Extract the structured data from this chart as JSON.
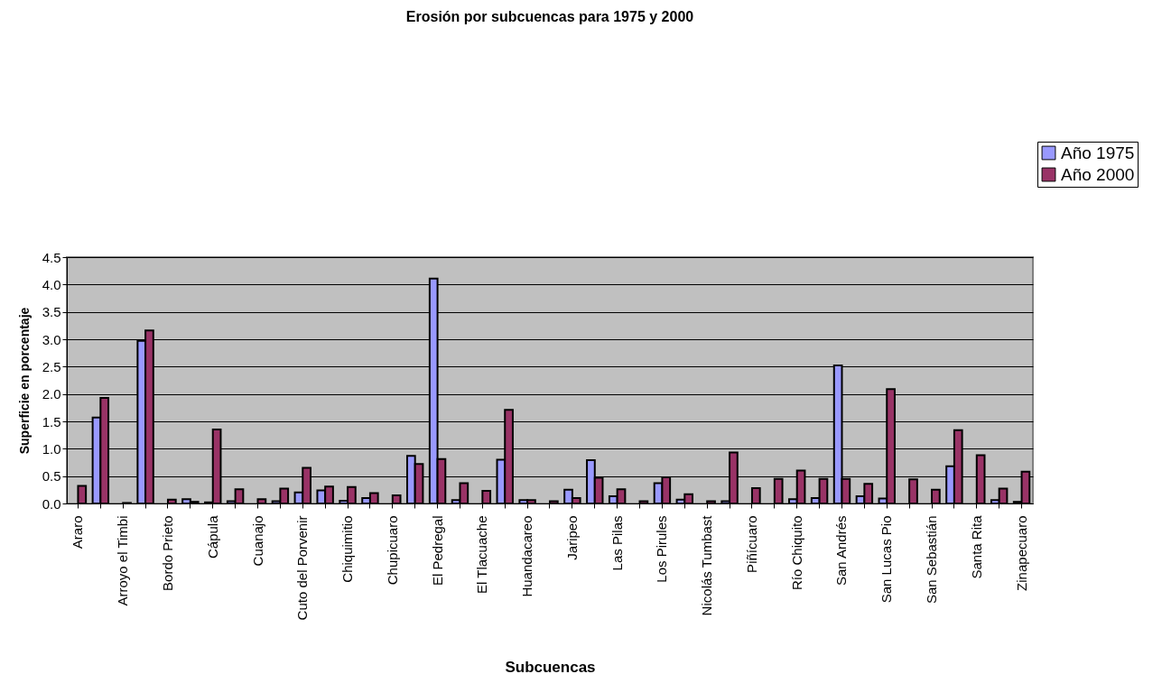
{
  "chart_data": {
    "type": "bar",
    "title": "Erosión   por subcuencas para 1975 y 2000",
    "xlabel": "Subcuencas",
    "ylabel": "Superficie en porcentaje",
    "categories": [
      "Araro",
      null,
      "Arroyo el Timbi",
      null,
      "Bordo Prieto",
      null,
      "Cápula",
      null,
      "Cuanajo",
      null,
      "Cuto del Porvenir",
      null,
      "Chiquimitio",
      null,
      "Chupicuaro",
      null,
      "El Pedregal",
      null,
      "El Tlacuache",
      null,
      "Huandacareo",
      null,
      "Jaripeo",
      null,
      "Las Pilas",
      null,
      "Los Pirules",
      null,
      "Nicolás  Tumbast",
      null,
      "Piñícuaro",
      null,
      "Río Chiquito",
      null,
      "San Andrés",
      null,
      "San Lucas Pio",
      null,
      "San Sebastián",
      null,
      "Santa Rita",
      null,
      "Zinapecuaro"
    ],
    "series": [
      {
        "name": "Año 1975",
        "color": "#9999ff",
        "values": [
          null,
          1.57,
          null,
          2.97,
          null,
          0.08,
          0.02,
          0.04,
          null,
          0.04,
          0.2,
          0.24,
          0.05,
          0.1,
          null,
          0.87,
          4.11,
          0.06,
          null,
          0.8,
          0.06,
          null,
          0.25,
          0.79,
          0.13,
          null,
          0.37,
          0.07,
          null,
          0.04,
          null,
          null,
          0.08,
          0.1,
          2.52,
          0.13,
          0.09,
          null,
          null,
          0.68,
          null,
          0.06,
          0.03
        ]
      },
      {
        "name": "Año 2000",
        "color": "#993366",
        "values": [
          0.32,
          1.93,
          0.01,
          3.16,
          0.07,
          0.03,
          1.35,
          0.26,
          0.08,
          0.27,
          0.65,
          0.31,
          0.3,
          0.19,
          0.15,
          0.72,
          0.81,
          0.37,
          0.23,
          1.71,
          0.06,
          0.04,
          0.1,
          0.47,
          0.26,
          0.04,
          0.48,
          0.17,
          0.04,
          0.93,
          0.28,
          0.45,
          0.6,
          0.45,
          0.45,
          0.36,
          2.09,
          0.44,
          0.25,
          1.34,
          0.88,
          0.27,
          0.58
        ]
      }
    ],
    "ylim": [
      0,
      4.5
    ],
    "yticks": [
      {
        "value": 0,
        "label": "0.0"
      },
      {
        "value": 0.5,
        "label": "0.5"
      },
      {
        "value": 1,
        "label": "1.0"
      },
      {
        "value": 1.5,
        "label": "1.5"
      },
      {
        "value": 2,
        "label": "2.0"
      },
      {
        "value": 2.5,
        "label": "2.5"
      },
      {
        "value": 3,
        "label": "3.0"
      },
      {
        "value": 3.5,
        "label": "3.5"
      },
      {
        "value": 4,
        "label": "4.0"
      },
      {
        "value": 4.5,
        "label": "4.5"
      }
    ],
    "grid": "y",
    "legend": "top right"
  }
}
